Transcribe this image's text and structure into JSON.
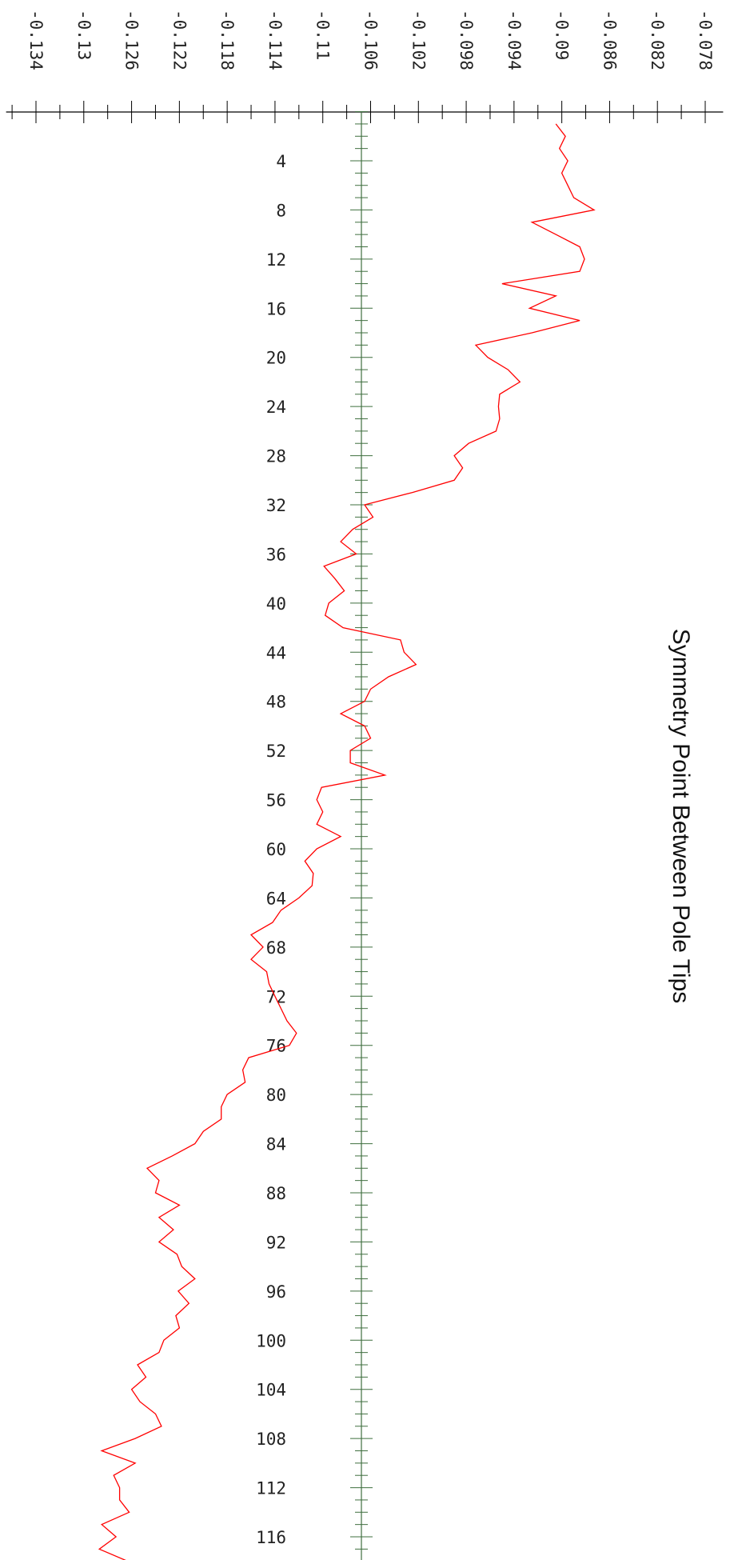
{
  "chart_data": {
    "type": "line",
    "title": "Symmetry Point Between Pole Tips",
    "orientation": "rotated-90-clockwise",
    "index_axis": {
      "range": [
        1,
        118
      ],
      "tick_labels": [
        "4",
        "8",
        "12",
        "16",
        "20",
        "24",
        "28",
        "32",
        "36",
        "40",
        "44",
        "48",
        "52",
        "56",
        "60",
        "64",
        "68",
        "72",
        "76",
        "80",
        "84",
        "88",
        "92",
        "96",
        "100",
        "104",
        "108",
        "112",
        "116"
      ],
      "minor_step": 1
    },
    "value_axis": {
      "range": [
        -0.1365,
        -0.0765
      ],
      "tick_labels": [
        "-0.134",
        "-0.13",
        "-0.126",
        "-0.122",
        "-0.118",
        "-0.114",
        "-0.11",
        "-0.106",
        "-0.102",
        "-0.098",
        "-0.094",
        "-0.09",
        "-0.086",
        "-0.082",
        "-0.078"
      ],
      "minor_step": 0.002
    },
    "grid": false,
    "series": [
      {
        "color": "#ff0000",
        "x": [
          1,
          2,
          3,
          4,
          5,
          6,
          7,
          8,
          9,
          10,
          11,
          12,
          13,
          14,
          15,
          16,
          17,
          18,
          19,
          20,
          21,
          22,
          23,
          24,
          25,
          26,
          27,
          28,
          29,
          30,
          31,
          32,
          33,
          34,
          35,
          36,
          37,
          38,
          39,
          40,
          41,
          42,
          43,
          44,
          45,
          46,
          47,
          48,
          49,
          50,
          51,
          52,
          53,
          54,
          55,
          56,
          57,
          58,
          59,
          60,
          61,
          62,
          63,
          64,
          65,
          66,
          67,
          68,
          69,
          70,
          71,
          72,
          73,
          74,
          75,
          76,
          77,
          78,
          79,
          80,
          81,
          82,
          83,
          84,
          85,
          86,
          87,
          88,
          89,
          90,
          91,
          92,
          93,
          94,
          95,
          96,
          97,
          98,
          99,
          100,
          101,
          102,
          103,
          104,
          105,
          106,
          107,
          108,
          109,
          110,
          111,
          112,
          113,
          114,
          115,
          116,
          117,
          118
        ],
        "y": [
          -0.0905,
          -0.0897,
          -0.0902,
          -0.0895,
          -0.09,
          -0.0895,
          -0.089,
          -0.0873,
          -0.0925,
          -0.0905,
          -0.0885,
          -0.0881,
          -0.0885,
          -0.095,
          -0.0905,
          -0.0927,
          -0.0885,
          -0.0925,
          -0.0972,
          -0.0962,
          -0.0945,
          -0.0935,
          -0.0952,
          -0.0953,
          -0.0952,
          -0.0955,
          -0.0978,
          -0.099,
          -0.0983,
          -0.099,
          -0.1025,
          -0.1065,
          -0.1058,
          -0.1075,
          -0.1085,
          -0.1072,
          -0.1099,
          -0.109,
          -0.1082,
          -0.1095,
          -0.1098,
          -0.1083,
          -0.1035,
          -0.1032,
          -0.1022,
          -0.1045,
          -0.106,
          -0.1065,
          -0.1085,
          -0.1065,
          -0.106,
          -0.1077,
          -0.1077,
          -0.1048,
          -0.1101,
          -0.1105,
          -0.11,
          -0.1105,
          -0.1085,
          -0.1105,
          -0.1115,
          -0.1108,
          -0.1109,
          -0.112,
          -0.1135,
          -0.1142,
          -0.116,
          -0.115,
          -0.116,
          -0.1147,
          -0.1145,
          -0.114,
          -0.1135,
          -0.113,
          -0.1122,
          -0.1128,
          -0.1162,
          -0.1167,
          -0.1165,
          -0.118,
          -0.1185,
          -0.1185,
          -0.12,
          -0.1207,
          -0.1226,
          -0.1247,
          -0.1237,
          -0.124,
          -0.122,
          -0.1237,
          -0.1225,
          -0.1237,
          -0.1222,
          -0.1218,
          -0.1207,
          -0.1221,
          -0.1212,
          -0.1223,
          -0.122,
          -0.1233,
          -0.1237,
          -0.1255,
          -0.1248,
          -0.126,
          -0.1253,
          -0.124,
          -0.1235,
          -0.1257,
          -0.1285,
          -0.1257,
          -0.1275,
          -0.127,
          -0.127,
          -0.1262,
          -0.1285,
          -0.1273,
          -0.1287,
          -0.1263
        ]
      }
    ]
  }
}
